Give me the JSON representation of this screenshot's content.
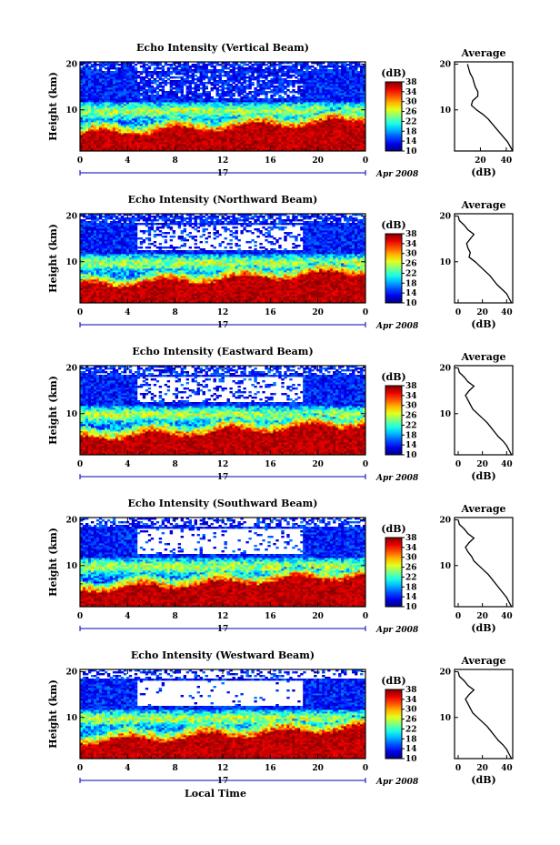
{
  "figure": {
    "xlabel": "Local Time",
    "day_label": "17",
    "month_label": "Apr 2008",
    "ylabel": "Height (km)",
    "colorbar_unit": "(dB)",
    "profile_title": "Average",
    "profile_xlabel": "(dB)"
  },
  "chart_data": [
    {
      "type": "heatmap",
      "title": "Echo Intensity (Vertical Beam)",
      "x_ticks": [
        "0",
        "4",
        "8",
        "12",
        "16",
        "20",
        "0"
      ],
      "xlim": [
        0,
        24
      ],
      "y_ticks": [
        "10",
        "20"
      ],
      "ylim": [
        1,
        20.5
      ],
      "colorbar_ticks": [
        "10",
        "14",
        "18",
        "22",
        "26",
        "30",
        "34",
        "38"
      ],
      "colorbar_range": [
        10,
        38
      ],
      "profile": {
        "x_ticks": [
          "20",
          "40"
        ],
        "xlim": [
          0,
          45
        ],
        "height_km": [
          20,
          19,
          18,
          17,
          16,
          15,
          14,
          13,
          12,
          11,
          10,
          9,
          8,
          7,
          6,
          5,
          4,
          3,
          2,
          1
        ],
        "intensity_db": [
          10,
          11,
          12,
          14,
          15,
          16,
          18,
          18,
          14,
          13,
          17,
          22,
          26,
          29,
          32,
          35,
          38,
          41,
          43,
          45
        ]
      }
    },
    {
      "type": "heatmap",
      "title": "Echo Intensity (Northward Beam)",
      "x_ticks": [
        "0",
        "4",
        "8",
        "12",
        "16",
        "20",
        "0"
      ],
      "xlim": [
        0,
        24
      ],
      "y_ticks": [
        "10",
        "20"
      ],
      "ylim": [
        1,
        20.5
      ],
      "colorbar_ticks": [
        "10",
        "14",
        "18",
        "22",
        "26",
        "30",
        "34",
        "38"
      ],
      "colorbar_range": [
        10,
        38
      ],
      "profile": {
        "x_ticks": [
          "0",
          "20",
          "40"
        ],
        "xlim": [
          -3,
          45
        ],
        "height_km": [
          20,
          19,
          18,
          17,
          16,
          15,
          14,
          13,
          12,
          11,
          10,
          9,
          8,
          7,
          6,
          5,
          4,
          3,
          2,
          1
        ],
        "intensity_db": [
          0,
          1,
          5,
          8,
          13,
          10,
          7,
          8,
          10,
          9,
          14,
          18,
          22,
          26,
          29,
          32,
          36,
          40,
          42,
          44
        ]
      }
    },
    {
      "type": "heatmap",
      "title": "Echo Intensity (Eastward Beam)",
      "x_ticks": [
        "0",
        "4",
        "8",
        "12",
        "16",
        "20",
        "0"
      ],
      "xlim": [
        0,
        24
      ],
      "y_ticks": [
        "10",
        "20"
      ],
      "ylim": [
        1,
        20.5
      ],
      "colorbar_ticks": [
        "10",
        "14",
        "18",
        "22",
        "26",
        "30",
        "34",
        "38"
      ],
      "colorbar_range": [
        10,
        38
      ],
      "profile": {
        "x_ticks": [
          "0",
          "20",
          "40"
        ],
        "xlim": [
          -3,
          45
        ],
        "height_km": [
          20,
          19,
          18,
          17,
          16,
          15,
          14,
          13,
          12,
          11,
          10,
          9,
          8,
          7,
          6,
          5,
          4,
          3,
          2,
          1
        ],
        "intensity_db": [
          0,
          1,
          5,
          8,
          13,
          9,
          6,
          8,
          10,
          12,
          16,
          20,
          24,
          27,
          30,
          33,
          37,
          40,
          42,
          44
        ]
      }
    },
    {
      "type": "heatmap",
      "title": "Echo Intensity (Southward Beam)",
      "x_ticks": [
        "0",
        "4",
        "8",
        "12",
        "16",
        "20",
        "0"
      ],
      "xlim": [
        0,
        24
      ],
      "y_ticks": [
        "10",
        "20"
      ],
      "ylim": [
        1,
        20.5
      ],
      "colorbar_ticks": [
        "10",
        "14",
        "18",
        "22",
        "26",
        "30",
        "34",
        "38"
      ],
      "colorbar_range": [
        10,
        38
      ],
      "profile": {
        "x_ticks": [
          "0",
          "20",
          "40"
        ],
        "xlim": [
          -3,
          45
        ],
        "height_km": [
          20,
          19,
          18,
          17,
          16,
          15,
          14,
          13,
          12,
          11,
          10,
          9,
          8,
          7,
          6,
          5,
          4,
          3,
          2,
          1
        ],
        "intensity_db": [
          0,
          1,
          5,
          8,
          13,
          9,
          6,
          8,
          11,
          13,
          17,
          21,
          25,
          28,
          31,
          34,
          37,
          40,
          42,
          44
        ]
      }
    },
    {
      "type": "heatmap",
      "title": "Echo Intensity (Westward Beam)",
      "x_ticks": [
        "0",
        "4",
        "8",
        "12",
        "16",
        "20",
        "0"
      ],
      "xlim": [
        0,
        24
      ],
      "y_ticks": [
        "10",
        "20"
      ],
      "ylim": [
        1,
        20.5
      ],
      "colorbar_ticks": [
        "10",
        "14",
        "18",
        "22",
        "26",
        "30",
        "34",
        "38"
      ],
      "colorbar_range": [
        10,
        38
      ],
      "profile": {
        "x_ticks": [
          "0",
          "20",
          "40"
        ],
        "xlim": [
          -3,
          45
        ],
        "height_km": [
          20,
          19,
          18,
          17,
          16,
          15,
          14,
          13,
          12,
          11,
          10,
          9,
          8,
          7,
          6,
          5,
          4,
          3,
          2,
          1
        ],
        "intensity_db": [
          0,
          1,
          5,
          8,
          13,
          9,
          6,
          8,
          10,
          12,
          16,
          20,
          24,
          27,
          30,
          33,
          37,
          40,
          42,
          44
        ]
      }
    }
  ]
}
